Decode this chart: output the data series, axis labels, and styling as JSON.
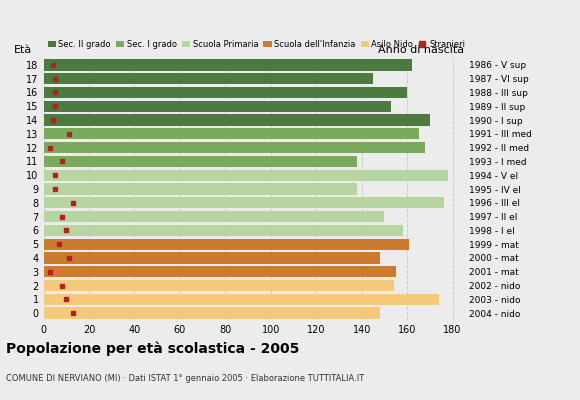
{
  "ages": [
    18,
    17,
    16,
    15,
    14,
    13,
    12,
    11,
    10,
    9,
    8,
    7,
    6,
    5,
    4,
    3,
    2,
    1,
    0
  ],
  "anni_nascita": [
    "1986 - V sup",
    "1987 - VI sup",
    "1988 - III sup",
    "1989 - II sup",
    "1990 - I sup",
    "1991 - III med",
    "1992 - II med",
    "1993 - I med",
    "1994 - V el",
    "1995 - IV el",
    "1996 - III el",
    "1997 - II el",
    "1998 - I el",
    "1999 - mat",
    "2000 - mat",
    "2001 - mat",
    "2002 - nido",
    "2003 - nido",
    "2004 - nido"
  ],
  "bar_values": [
    162,
    145,
    160,
    153,
    170,
    165,
    168,
    138,
    178,
    138,
    176,
    150,
    158,
    161,
    148,
    155,
    154,
    174,
    148
  ],
  "stranieri": [
    4,
    5,
    5,
    5,
    4,
    11,
    3,
    8,
    5,
    5,
    13,
    8,
    10,
    7,
    11,
    3,
    8,
    10,
    13
  ],
  "bar_colors": [
    "#4d7a3e",
    "#4d7a3e",
    "#4d7a3e",
    "#4d7a3e",
    "#4d7a3e",
    "#7aaa5e",
    "#7aaa5e",
    "#7aaa5e",
    "#b8d4a0",
    "#b8d4a0",
    "#b8d4a0",
    "#b8d4a0",
    "#b8d4a0",
    "#cc7a30",
    "#cc7a30",
    "#cc7a30",
    "#f5c97a",
    "#f5c97a",
    "#f5c97a"
  ],
  "legend_colors": [
    "#4d7a3e",
    "#7aaa5e",
    "#b8d4a0",
    "#cc7a30",
    "#f5c97a",
    "#b22222"
  ],
  "legend_labels": [
    "Sec. II grado",
    "Sec. I grado",
    "Scuola Primaria",
    "Scuola dell'Infanzia",
    "Asilo Nido",
    "Stranieri"
  ],
  "xlabel_vals": [
    0,
    20,
    40,
    60,
    80,
    100,
    120,
    140,
    160,
    180
  ],
  "xmax": 185,
  "title": "Popolazione per età scolastica - 2005",
  "subtitle": "COMUNE DI NERVIANO (MI) · Dati ISTAT 1° gennaio 2005 · Elaborazione TUTTITALIA.IT",
  "eta_label": "Età",
  "anno_label": "Anno di nascita",
  "bg_color": "#ececec",
  "bar_height": 0.82,
  "grid_color": "#cccccc"
}
